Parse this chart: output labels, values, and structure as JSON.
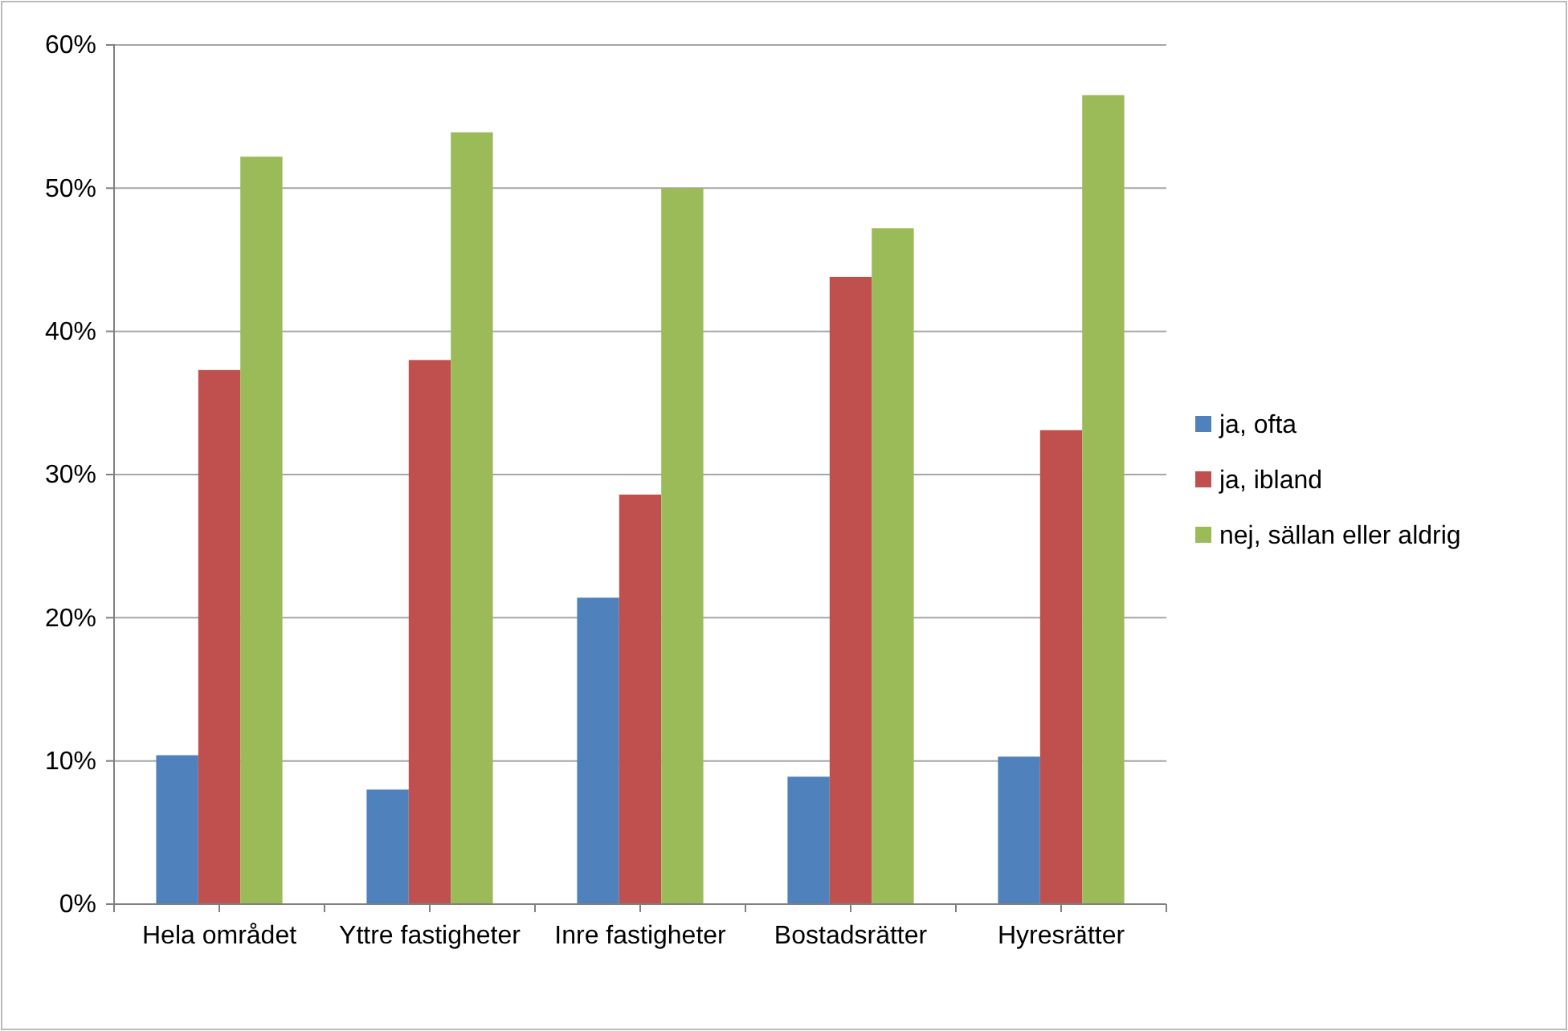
{
  "chart_data": {
    "type": "bar",
    "categories": [
      "Hela området",
      "Yttre fastigheter",
      "Inre fastigheter",
      "Bostadsrätter",
      "Hyresrätter"
    ],
    "series": [
      {
        "name": "ja, ofta",
        "color": "#4f81bd",
        "values": [
          10.4,
          8.0,
          21.4,
          8.9,
          10.3
        ]
      },
      {
        "name": "ja, ibland",
        "color": "#c0504d",
        "values": [
          37.3,
          38.0,
          28.6,
          43.8,
          33.1
        ]
      },
      {
        "name": "nej, sällan eller aldrig",
        "color": "#9bbb59",
        "values": [
          52.2,
          53.9,
          50.0,
          47.2,
          56.5
        ]
      }
    ],
    "ylim": [
      0,
      60
    ],
    "yticks": [
      {
        "value": 0,
        "label": "0%"
      },
      {
        "value": 10,
        "label": "10%"
      },
      {
        "value": 20,
        "label": "20%"
      },
      {
        "value": 30,
        "label": "30%"
      },
      {
        "value": 40,
        "label": "40%"
      },
      {
        "value": 50,
        "label": "50%"
      },
      {
        "value": 60,
        "label": "60%"
      }
    ],
    "grid": "y",
    "legend": "right"
  }
}
